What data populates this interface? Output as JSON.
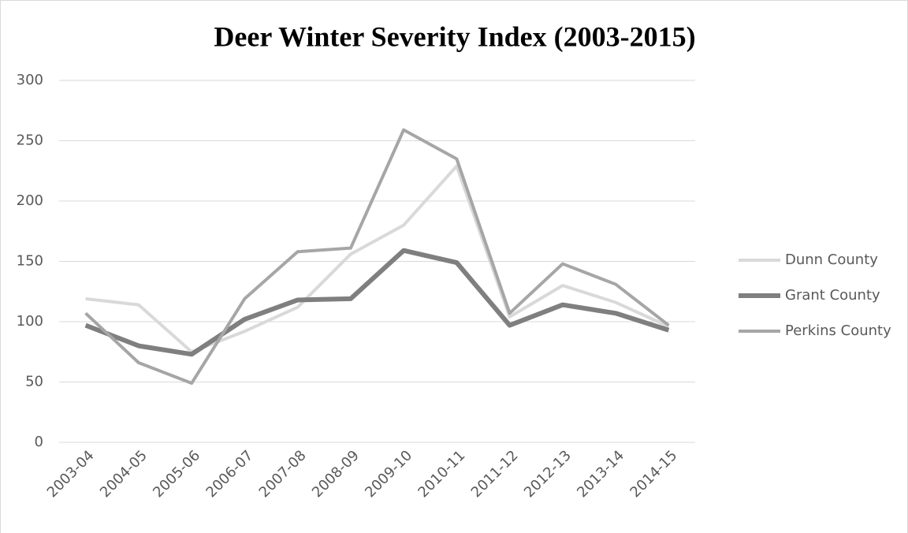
{
  "chart_data": {
    "type": "line",
    "title": "Deer Winter Severity Index (2003-2015)",
    "categories": [
      "2003-04",
      "2004-05",
      "2005-06",
      "2006-07",
      "2007-08",
      "2008-09",
      "2009-10",
      "2010-11",
      "2011-12",
      "2012-13",
      "2013-14",
      "2014-15"
    ],
    "series": [
      {
        "name": "Dunn County",
        "color": "#d9d9d9",
        "values": [
          119,
          114,
          75,
          92,
          112,
          156,
          180,
          229,
          104,
          130,
          116,
          96
        ]
      },
      {
        "name": "Grant County",
        "color": "#7f7f7f",
        "values": [
          97,
          80,
          73,
          102,
          118,
          119,
          159,
          149,
          97,
          114,
          107,
          93
        ]
      },
      {
        "name": "Perkins County",
        "color": "#a6a6a6",
        "values": [
          107,
          66,
          49,
          119,
          158,
          161,
          259,
          235,
          107,
          148,
          131,
          97
        ]
      }
    ],
    "ylim": [
      0,
      300
    ],
    "yticks": [
      0,
      50,
      100,
      150,
      200,
      250,
      300
    ],
    "grid": true,
    "legend": "right"
  }
}
